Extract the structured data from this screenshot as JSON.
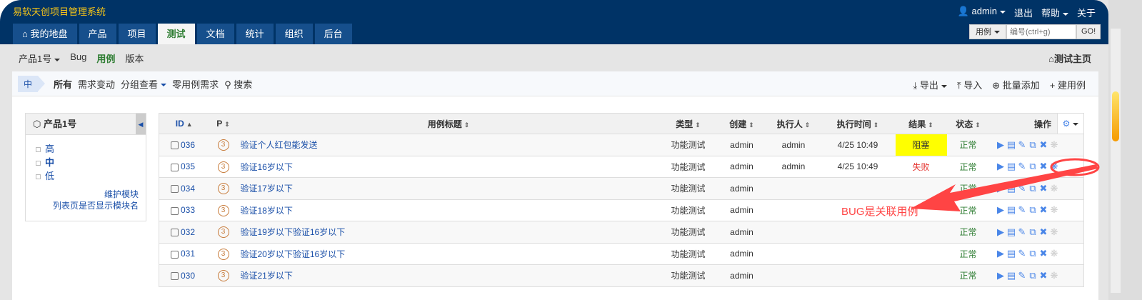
{
  "header": {
    "app_title": "易软天创项目管理系统",
    "user": "admin",
    "logout": "退出",
    "help": "帮助",
    "about": "关于"
  },
  "nav": {
    "tabs": [
      "我的地盘",
      "产品",
      "项目",
      "测试",
      "文档",
      "统计",
      "组织",
      "后台"
    ],
    "active": "测试"
  },
  "search": {
    "type": "用例",
    "placeholder": "编号(ctrl+g)",
    "go": "GO!"
  },
  "subnav": {
    "product": "产品1号",
    "items": [
      "Bug",
      "用例",
      "版本"
    ],
    "active": "用例",
    "home": "测试主页"
  },
  "toolbar": {
    "module": "中",
    "filters": [
      "所有",
      "需求变动",
      "分组查看",
      "零用例需求",
      "搜索"
    ],
    "actions": [
      "导出",
      "导入",
      "批量添加",
      "建用例"
    ]
  },
  "side": {
    "title": "产品1号",
    "modules": [
      "高",
      "中",
      "低"
    ],
    "links": [
      "维护模块",
      "列表页是否显示模块名"
    ]
  },
  "table": {
    "columns": [
      "ID",
      "P",
      "用例标题",
      "类型",
      "创建",
      "执行人",
      "执行时间",
      "结果",
      "状态",
      "操作"
    ],
    "rows": [
      {
        "id": "036",
        "p": "3",
        "title": "验证个人红包能发送",
        "type": "功能测试",
        "creator": "admin",
        "executor": "admin",
        "time": "4/25 10:49",
        "result": "阻塞",
        "status": "正常",
        "bug_active": false
      },
      {
        "id": "035",
        "p": "3",
        "title": "验证16岁以下",
        "type": "功能测试",
        "creator": "admin",
        "executor": "admin",
        "time": "4/25 10:49",
        "result": "失败",
        "status": "正常",
        "bug_active": true
      },
      {
        "id": "034",
        "p": "3",
        "title": "验证17岁以下",
        "type": "功能测试",
        "creator": "admin",
        "executor": "",
        "time": "",
        "result": "",
        "status": "正常",
        "bug_active": false
      },
      {
        "id": "033",
        "p": "3",
        "title": "验证18岁以下",
        "type": "功能测试",
        "creator": "admin",
        "executor": "",
        "time": "",
        "result": "",
        "status": "正常",
        "bug_active": false
      },
      {
        "id": "032",
        "p": "3",
        "title": "验证19岁以下验证16岁以下",
        "type": "功能测试",
        "creator": "admin",
        "executor": "",
        "time": "",
        "result": "",
        "status": "正常",
        "bug_active": false
      },
      {
        "id": "031",
        "p": "3",
        "title": "验证20岁以下验证16岁以下",
        "type": "功能测试",
        "creator": "admin",
        "executor": "",
        "time": "",
        "result": "",
        "status": "正常",
        "bug_active": false
      },
      {
        "id": "030",
        "p": "3",
        "title": "验证21岁以下",
        "type": "功能测试",
        "creator": "admin",
        "executor": "",
        "time": "",
        "result": "",
        "status": "正常",
        "bug_active": false
      }
    ]
  },
  "annotation": "BUG是关联用例",
  "colors": {
    "header": "#003366",
    "accent": "#1a4fa8",
    "blocked": "#ffff00",
    "fail": "#e53935",
    "normal": "#2e7d32",
    "annotation": "#ff4444"
  }
}
